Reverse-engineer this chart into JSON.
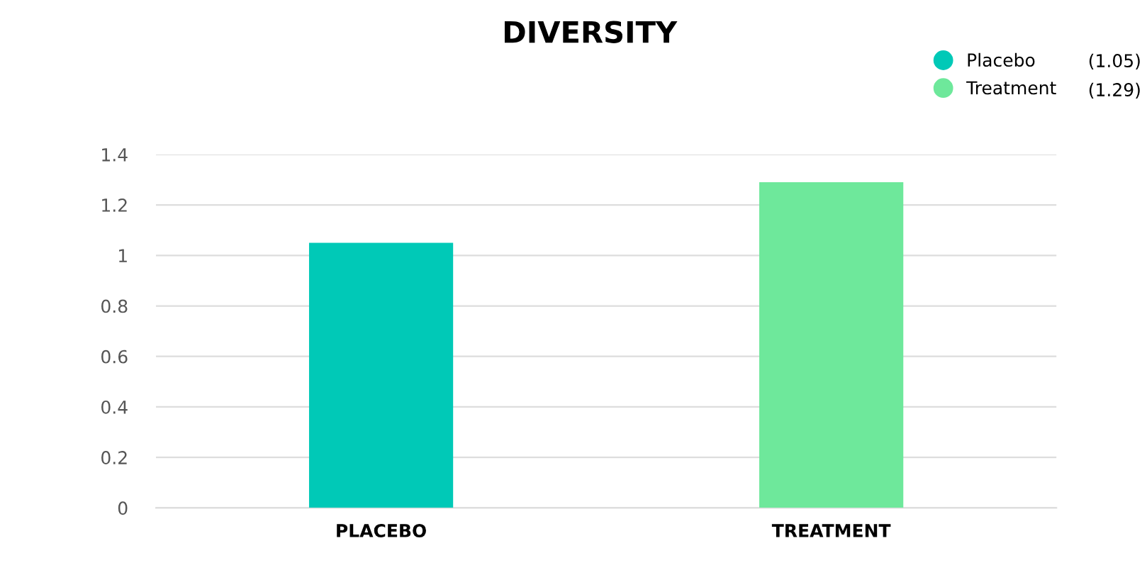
{
  "chart_data": {
    "type": "bar",
    "title": "DIVERSITY",
    "categories": [
      "PLACEBO",
      "TREATMENT"
    ],
    "series": [
      {
        "name": "Placebo",
        "color": "#00c9b7",
        "values": [
          1.05,
          null
        ]
      },
      {
        "name": "Treatment",
        "color": "#6ee89b",
        "values": [
          null,
          1.29
        ]
      }
    ],
    "annotations": [
      "(1.05)",
      "(1.29)"
    ],
    "ylim": [
      0,
      1.4
    ],
    "yticks": [
      0,
      0.2,
      0.4,
      0.6,
      0.8,
      1,
      1.2,
      1.4
    ],
    "grid": "y",
    "legend": "top right"
  }
}
